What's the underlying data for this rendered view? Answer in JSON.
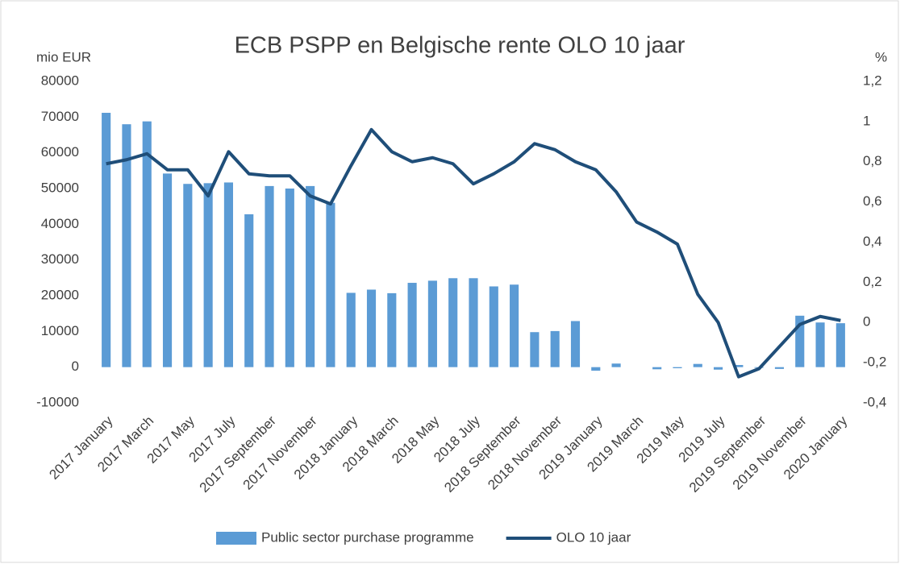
{
  "chart_data": {
    "type": "bar-line",
    "title": "ECB PSPP en Belgische rente OLO 10 jaar",
    "y_label": "mio EUR",
    "y2_label": "%",
    "categories": [
      "2017 January",
      null,
      "2017 March",
      null,
      "2017 May",
      null,
      "2017 July",
      null,
      "2017 September",
      null,
      "2017 November",
      null,
      "2018 January",
      null,
      "2018 March",
      null,
      "2018 May",
      null,
      "2018 July",
      null,
      "2018 September",
      null,
      "2018 November",
      null,
      "2019 January",
      null,
      "2019 March",
      null,
      "2019 May",
      null,
      "2019 July",
      null,
      "2019 September",
      null,
      "2019 November",
      null,
      "2020 January"
    ],
    "series": [
      {
        "name": "Public sector purchase programme",
        "color": "#5b9bd5",
        "type": "bar",
        "values": [
          71200,
          68000,
          68800,
          54200,
          51300,
          51500,
          51700,
          42800,
          50700,
          50000,
          50700,
          46000,
          20800,
          21700,
          20700,
          23600,
          24200,
          24900,
          24900,
          22600,
          23100,
          9800,
          10100,
          12900,
          -1000,
          1000,
          0,
          -600,
          -300,
          900,
          -700,
          600,
          -200,
          -500,
          14400,
          12500,
          12300
        ]
      },
      {
        "name": "OLO 10 jaar",
        "color": "#1f4e79",
        "type": "line",
        "axis": "y2",
        "values": [
          0.79,
          0.81,
          0.84,
          0.76,
          0.76,
          0.63,
          0.85,
          0.74,
          0.73,
          0.73,
          0.63,
          0.59,
          0.78,
          0.96,
          0.85,
          0.8,
          0.82,
          0.79,
          0.69,
          0.74,
          0.8,
          0.89,
          0.86,
          0.8,
          0.76,
          0.65,
          0.5,
          0.45,
          0.39,
          0.14,
          0.0,
          -0.27,
          -0.23,
          -0.12,
          -0.01,
          0.03,
          0.01
        ]
      }
    ],
    "ylim": [
      -10000,
      80000
    ],
    "yticks": [
      -10000,
      0,
      10000,
      20000,
      30000,
      40000,
      50000,
      60000,
      70000,
      80000
    ],
    "y2lim": [
      -0.4,
      1.2
    ],
    "y2ticks": [
      {
        "value": -0.4,
        "label": "-0,4"
      },
      {
        "value": -0.2,
        "label": "-0,2"
      },
      0,
      {
        "value": 0.2,
        "label": "0,2"
      },
      {
        "value": 0.4,
        "label": "0,4"
      },
      {
        "value": 0.6,
        "label": "0,6"
      },
      {
        "value": 0.8,
        "label": "0,8"
      },
      1,
      {
        "value": 1.2,
        "label": "1,2"
      }
    ],
    "grid": false,
    "legend": "bottom"
  }
}
